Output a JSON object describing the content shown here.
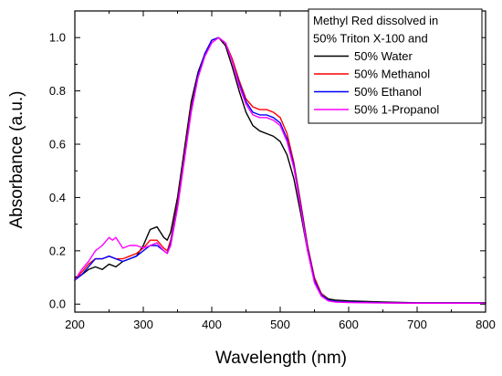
{
  "chart_data": {
    "type": "line",
    "xlabel": "Wavelength (nm)",
    "ylabel": "Absorbance (a.u.)",
    "xlim": [
      200,
      800
    ],
    "ylim": [
      -0.03,
      1.1
    ],
    "x_ticks": [
      200,
      300,
      400,
      500,
      600,
      700,
      800
    ],
    "y_ticks": [
      0.0,
      0.2,
      0.4,
      0.6,
      0.8,
      1.0
    ],
    "x_tick_labels": [
      "200",
      "300",
      "400",
      "500",
      "600",
      "700",
      "800"
    ],
    "y_tick_labels": [
      "0.0",
      "0.2",
      "0.4",
      "0.6",
      "0.8",
      "1.0"
    ],
    "grid": false,
    "legend": {
      "placement": "top-right",
      "title_lines": [
        "Methyl Red dissolved in",
        "50% Triton X-100 and"
      ]
    },
    "series": [
      {
        "name": "50% Water",
        "color": "#000000",
        "points": [
          [
            200,
            0.1
          ],
          [
            210,
            0.11
          ],
          [
            220,
            0.13
          ],
          [
            230,
            0.14
          ],
          [
            240,
            0.13
          ],
          [
            250,
            0.15
          ],
          [
            260,
            0.14
          ],
          [
            270,
            0.16
          ],
          [
            280,
            0.17
          ],
          [
            290,
            0.18
          ],
          [
            300,
            0.22
          ],
          [
            310,
            0.28
          ],
          [
            320,
            0.29
          ],
          [
            330,
            0.25
          ],
          [
            335,
            0.24
          ],
          [
            340,
            0.27
          ],
          [
            350,
            0.4
          ],
          [
            360,
            0.58
          ],
          [
            370,
            0.76
          ],
          [
            380,
            0.87
          ],
          [
            390,
            0.94
          ],
          [
            400,
            0.99
          ],
          [
            410,
            1.0
          ],
          [
            420,
            0.97
          ],
          [
            430,
            0.89
          ],
          [
            440,
            0.8
          ],
          [
            450,
            0.72
          ],
          [
            460,
            0.67
          ],
          [
            470,
            0.65
          ],
          [
            480,
            0.64
          ],
          [
            490,
            0.63
          ],
          [
            500,
            0.61
          ],
          [
            510,
            0.56
          ],
          [
            520,
            0.47
          ],
          [
            530,
            0.34
          ],
          [
            540,
            0.2
          ],
          [
            550,
            0.09
          ],
          [
            560,
            0.04
          ],
          [
            570,
            0.02
          ],
          [
            580,
            0.015
          ],
          [
            600,
            0.012
          ],
          [
            650,
            0.008
          ],
          [
            700,
            0.005
          ],
          [
            750,
            0.005
          ],
          [
            800,
            0.005
          ]
        ]
      },
      {
        "name": "50% Methanol",
        "color": "#ff0000",
        "points": [
          [
            200,
            0.09
          ],
          [
            210,
            0.12
          ],
          [
            220,
            0.15
          ],
          [
            230,
            0.17
          ],
          [
            240,
            0.17
          ],
          [
            250,
            0.18
          ],
          [
            260,
            0.17
          ],
          [
            270,
            0.17
          ],
          [
            280,
            0.18
          ],
          [
            290,
            0.19
          ],
          [
            300,
            0.21
          ],
          [
            310,
            0.24
          ],
          [
            320,
            0.24
          ],
          [
            330,
            0.21
          ],
          [
            335,
            0.2
          ],
          [
            340,
            0.24
          ],
          [
            350,
            0.38
          ],
          [
            360,
            0.56
          ],
          [
            370,
            0.74
          ],
          [
            380,
            0.86
          ],
          [
            390,
            0.94
          ],
          [
            400,
            0.99
          ],
          [
            410,
            1.0
          ],
          [
            420,
            0.98
          ],
          [
            430,
            0.92
          ],
          [
            440,
            0.84
          ],
          [
            450,
            0.77
          ],
          [
            460,
            0.74
          ],
          [
            470,
            0.73
          ],
          [
            480,
            0.73
          ],
          [
            490,
            0.72
          ],
          [
            500,
            0.7
          ],
          [
            510,
            0.64
          ],
          [
            520,
            0.53
          ],
          [
            530,
            0.38
          ],
          [
            540,
            0.22
          ],
          [
            550,
            0.1
          ],
          [
            560,
            0.04
          ],
          [
            570,
            0.015
          ],
          [
            580,
            0.01
          ],
          [
            600,
            0.008
          ],
          [
            650,
            0.005
          ],
          [
            700,
            0.004
          ],
          [
            750,
            0.004
          ],
          [
            800,
            0.004
          ]
        ]
      },
      {
        "name": "50% Ethanol",
        "color": "#0000ff",
        "points": [
          [
            200,
            0.09
          ],
          [
            210,
            0.11
          ],
          [
            220,
            0.14
          ],
          [
            230,
            0.17
          ],
          [
            240,
            0.17
          ],
          [
            250,
            0.18
          ],
          [
            260,
            0.17
          ],
          [
            270,
            0.16
          ],
          [
            280,
            0.17
          ],
          [
            290,
            0.18
          ],
          [
            300,
            0.2
          ],
          [
            310,
            0.22
          ],
          [
            320,
            0.22
          ],
          [
            330,
            0.2
          ],
          [
            335,
            0.19
          ],
          [
            340,
            0.23
          ],
          [
            350,
            0.37
          ],
          [
            360,
            0.55
          ],
          [
            370,
            0.73
          ],
          [
            380,
            0.86
          ],
          [
            390,
            0.94
          ],
          [
            400,
            0.99
          ],
          [
            410,
            1.0
          ],
          [
            420,
            0.98
          ],
          [
            430,
            0.91
          ],
          [
            440,
            0.83
          ],
          [
            450,
            0.76
          ],
          [
            460,
            0.72
          ],
          [
            470,
            0.71
          ],
          [
            480,
            0.71
          ],
          [
            490,
            0.7
          ],
          [
            500,
            0.68
          ],
          [
            510,
            0.62
          ],
          [
            520,
            0.52
          ],
          [
            530,
            0.37
          ],
          [
            540,
            0.21
          ],
          [
            550,
            0.09
          ],
          [
            560,
            0.035
          ],
          [
            570,
            0.015
          ],
          [
            580,
            0.01
          ],
          [
            600,
            0.008
          ],
          [
            650,
            0.005
          ],
          [
            700,
            0.004
          ],
          [
            750,
            0.004
          ],
          [
            800,
            0.004
          ]
        ]
      },
      {
        "name": "50% 1-Propanol",
        "color": "#ff00ff",
        "points": [
          [
            200,
            0.09
          ],
          [
            210,
            0.13
          ],
          [
            220,
            0.16
          ],
          [
            230,
            0.2
          ],
          [
            240,
            0.22
          ],
          [
            250,
            0.25
          ],
          [
            255,
            0.24
          ],
          [
            260,
            0.25
          ],
          [
            270,
            0.21
          ],
          [
            280,
            0.22
          ],
          [
            290,
            0.22
          ],
          [
            300,
            0.21
          ],
          [
            310,
            0.22
          ],
          [
            320,
            0.23
          ],
          [
            330,
            0.2
          ],
          [
            335,
            0.19
          ],
          [
            340,
            0.22
          ],
          [
            350,
            0.36
          ],
          [
            360,
            0.54
          ],
          [
            370,
            0.72
          ],
          [
            380,
            0.85
          ],
          [
            390,
            0.93
          ],
          [
            400,
            0.98
          ],
          [
            410,
            1.0
          ],
          [
            420,
            0.98
          ],
          [
            430,
            0.91
          ],
          [
            440,
            0.82
          ],
          [
            450,
            0.75
          ],
          [
            460,
            0.71
          ],
          [
            470,
            0.7
          ],
          [
            480,
            0.7
          ],
          [
            490,
            0.69
          ],
          [
            500,
            0.67
          ],
          [
            510,
            0.61
          ],
          [
            520,
            0.51
          ],
          [
            530,
            0.36
          ],
          [
            540,
            0.2
          ],
          [
            550,
            0.08
          ],
          [
            560,
            0.03
          ],
          [
            570,
            0.012
          ],
          [
            580,
            0.008
          ],
          [
            600,
            0.006
          ],
          [
            650,
            0.004
          ],
          [
            700,
            0.003
          ],
          [
            750,
            0.003
          ],
          [
            800,
            0.003
          ]
        ]
      }
    ]
  }
}
